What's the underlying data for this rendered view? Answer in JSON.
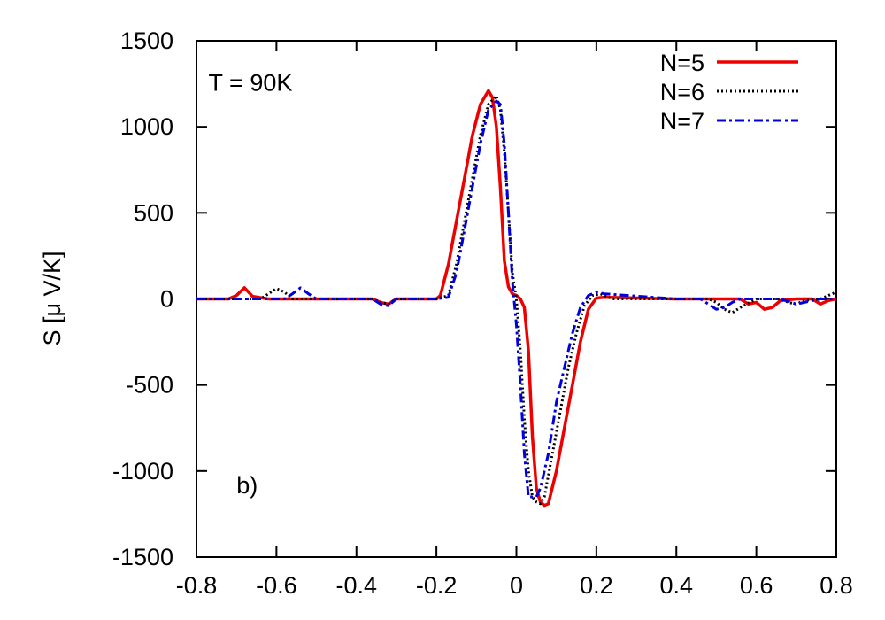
{
  "chart_data": {
    "type": "line",
    "title": "",
    "xlabel": "",
    "ylabel": "S [μ V/K]",
    "xlim": [
      -0.8,
      0.8
    ],
    "ylim": [
      -1500,
      1500
    ],
    "xticks": [
      -0.8,
      -0.6,
      -0.4,
      -0.2,
      0,
      0.2,
      0.4,
      0.6,
      0.8
    ],
    "xtick_labels": [
      "-0.8",
      "-0.6",
      "-0.4",
      "-0.2",
      "0",
      "0.2",
      "0.4",
      "0.6",
      "0.8"
    ],
    "yticks": [
      -1500,
      -1000,
      -500,
      0,
      500,
      1000,
      1500
    ],
    "ytick_labels": [
      "-1500",
      "-1000",
      "-500",
      "0",
      "500",
      "1000",
      "1500"
    ],
    "grid": false,
    "legend_position": "top-right",
    "annotations": [
      {
        "text": "T = 90K",
        "x": -0.77,
        "y": 1210
      },
      {
        "text": "b)",
        "x": -0.7,
        "y": -1130
      }
    ],
    "series": [
      {
        "name": "N=5",
        "color": "#ee0000",
        "style": "solid",
        "x": [
          -0.8,
          -0.72,
          -0.7,
          -0.68,
          -0.66,
          -0.62,
          -0.5,
          -0.36,
          -0.34,
          -0.32,
          -0.3,
          -0.2,
          -0.19,
          -0.17,
          -0.15,
          -0.13,
          -0.11,
          -0.09,
          -0.07,
          -0.06,
          -0.05,
          -0.04,
          -0.03,
          -0.02,
          -0.01,
          0.0,
          0.01,
          0.02,
          0.03,
          0.04,
          0.05,
          0.06,
          0.07,
          0.08,
          0.1,
          0.12,
          0.14,
          0.16,
          0.18,
          0.2,
          0.22,
          0.4,
          0.5,
          0.56,
          0.58,
          0.6,
          0.62,
          0.64,
          0.66,
          0.7,
          0.74,
          0.76,
          0.78,
          0.8
        ],
        "y": [
          0,
          0,
          20,
          65,
          15,
          0,
          0,
          0,
          -20,
          -30,
          0,
          0,
          20,
          200,
          450,
          700,
          950,
          1130,
          1210,
          1170,
          1000,
          650,
          220,
          70,
          30,
          20,
          0,
          -50,
          -300,
          -800,
          -1100,
          -1180,
          -1200,
          -1190,
          -1000,
          -750,
          -500,
          -250,
          -60,
          5,
          10,
          0,
          0,
          0,
          -30,
          -20,
          -60,
          -50,
          -10,
          0,
          0,
          -30,
          -10,
          0
        ]
      },
      {
        "name": "N=6",
        "color": "#000000",
        "style": "dotted",
        "x": [
          -0.8,
          -0.64,
          -0.62,
          -0.6,
          -0.58,
          -0.56,
          -0.5,
          -0.36,
          -0.34,
          -0.32,
          -0.3,
          -0.2,
          -0.17,
          -0.15,
          -0.13,
          -0.11,
          -0.09,
          -0.07,
          -0.05,
          -0.04,
          -0.03,
          -0.02,
          -0.01,
          0.0,
          0.01,
          0.02,
          0.03,
          0.04,
          0.05,
          0.06,
          0.07,
          0.09,
          0.11,
          0.13,
          0.15,
          0.17,
          0.19,
          0.21,
          0.24,
          0.4,
          0.48,
          0.5,
          0.52,
          0.54,
          0.56,
          0.6,
          0.66,
          0.68,
          0.7,
          0.72,
          0.76,
          0.78,
          0.8
        ],
        "y": [
          0,
          0,
          30,
          60,
          40,
          0,
          0,
          0,
          -20,
          -30,
          0,
          0,
          20,
          200,
          450,
          700,
          950,
          1130,
          1180,
          1100,
          850,
          500,
          150,
          0,
          -300,
          -700,
          -1000,
          -1150,
          -1180,
          -1190,
          -1150,
          -900,
          -650,
          -400,
          -200,
          -40,
          20,
          30,
          0,
          0,
          0,
          -20,
          -60,
          -80,
          -50,
          0,
          0,
          -20,
          -30,
          -10,
          0,
          20,
          40
        ]
      },
      {
        "name": "N=7",
        "color": "#0000dd",
        "style": "dashdot",
        "x": [
          -0.8,
          -0.58,
          -0.56,
          -0.54,
          -0.52,
          -0.5,
          -0.36,
          -0.34,
          -0.32,
          -0.3,
          -0.2,
          -0.17,
          -0.15,
          -0.13,
          -0.11,
          -0.09,
          -0.07,
          -0.05,
          -0.04,
          -0.03,
          -0.02,
          -0.01,
          0.0,
          0.01,
          0.02,
          0.03,
          0.04,
          0.05,
          0.06,
          0.08,
          0.1,
          0.12,
          0.14,
          0.16,
          0.18,
          0.2,
          0.22,
          0.4,
          0.46,
          0.48,
          0.5,
          0.52,
          0.54,
          0.56,
          0.6,
          0.66,
          0.7,
          0.72,
          0.74,
          0.76,
          0.8
        ],
        "y": [
          0,
          0,
          30,
          65,
          30,
          0,
          0,
          -30,
          -40,
          0,
          0,
          10,
          150,
          400,
          650,
          900,
          1100,
          1150,
          1130,
          900,
          500,
          100,
          -150,
          -500,
          -900,
          -1150,
          -1150,
          -1150,
          -1100,
          -900,
          -600,
          -400,
          -200,
          -50,
          20,
          40,
          30,
          0,
          0,
          -30,
          -60,
          -50,
          -20,
          0,
          0,
          0,
          -30,
          -20,
          -10,
          0,
          0
        ]
      }
    ]
  }
}
